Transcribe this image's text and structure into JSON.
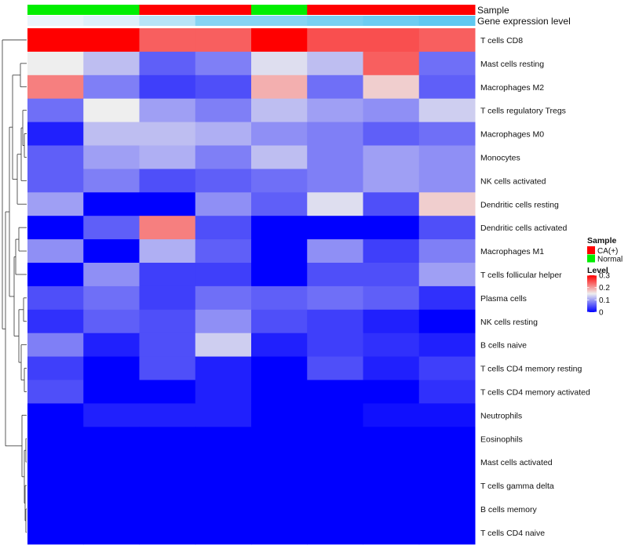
{
  "chart_data": {
    "type": "heatmap",
    "annotation_rows": [
      {
        "name": "Sample",
        "label": "Sample",
        "values": [
          "Normal",
          "Normal",
          "CA(+)",
          "CA(+)",
          "Normal",
          "CA(+)",
          "CA(+)",
          "CA(+)"
        ]
      },
      {
        "name": "Gene expression level",
        "label": "Gene expression level",
        "values": [
          0.1,
          0.11,
          0.14,
          0.18,
          0.18,
          0.19,
          0.2,
          0.21
        ]
      }
    ],
    "rows": [
      "T cells CD8",
      "Mast cells resting",
      "Macrophages M2",
      "T cells regulatory  Tregs",
      "Macrophages M0",
      "Monocytes",
      "NK cells activated",
      "Dendritic cells resting",
      "Dendritic cells activated",
      "Macrophages M1",
      "T cells follicular helper",
      "Plasma cells",
      "NK cells resting",
      "B cells naive",
      "T cells CD4 memory resting",
      "T cells CD4 memory activated",
      "Neutrophils",
      "Eosinophils",
      "Mast cells activated",
      "T cells gamma delta",
      "B cells memory",
      "T cells CD4 naive"
    ],
    "values": [
      [
        0.3,
        0.31,
        0.24,
        0.24,
        0.3,
        0.25,
        0.25,
        0.24
      ],
      [
        0.15,
        0.12,
        0.06,
        0.08,
        0.14,
        0.12,
        0.24,
        0.07
      ],
      [
        0.22,
        0.08,
        0.04,
        0.05,
        0.19,
        0.07,
        0.17,
        0.06
      ],
      [
        0.07,
        0.15,
        0.1,
        0.08,
        0.12,
        0.1,
        0.09,
        0.13
      ],
      [
        0.02,
        0.12,
        0.12,
        0.11,
        0.09,
        0.08,
        0.06,
        0.07
      ],
      [
        0.06,
        0.1,
        0.11,
        0.08,
        0.12,
        0.08,
        0.1,
        0.09
      ],
      [
        0.06,
        0.08,
        0.05,
        0.06,
        0.07,
        0.08,
        0.1,
        0.09
      ],
      [
        0.1,
        0.0,
        0.0,
        0.09,
        0.06,
        0.14,
        0.05,
        0.17
      ],
      [
        0.0,
        0.06,
        0.22,
        0.05,
        0.0,
        0.0,
        0.0,
        0.05
      ],
      [
        0.09,
        0.0,
        0.11,
        0.06,
        0.0,
        0.09,
        0.04,
        0.08
      ],
      [
        0.0,
        0.09,
        0.04,
        0.04,
        0.0,
        0.05,
        0.05,
        0.1
      ],
      [
        0.05,
        0.07,
        0.04,
        0.07,
        0.06,
        0.07,
        0.06,
        0.03
      ],
      [
        0.03,
        0.06,
        0.05,
        0.09,
        0.05,
        0.04,
        0.02,
        0.0
      ],
      [
        0.08,
        0.02,
        0.05,
        0.13,
        0.02,
        0.04,
        0.03,
        0.02
      ],
      [
        0.04,
        0.0,
        0.05,
        0.02,
        0.0,
        0.05,
        0.02,
        0.04
      ],
      [
        0.05,
        0.0,
        0.0,
        0.02,
        0.0,
        0.0,
        0.0,
        0.03
      ],
      [
        0.0,
        0.02,
        0.02,
        0.02,
        0.0,
        0.0,
        0.01,
        0.01
      ],
      [
        0.0,
        0.0,
        0.0,
        0.0,
        0.0,
        0.0,
        0.0,
        0.0
      ],
      [
        0.0,
        0.0,
        0.0,
        0.0,
        0.0,
        0.0,
        0.0,
        0.0
      ],
      [
        0.0,
        0.0,
        0.0,
        0.0,
        0.0,
        0.0,
        0.0,
        0.0
      ],
      [
        0.0,
        0.0,
        0.0,
        0.0,
        0.0,
        0.0,
        0.0,
        0.0
      ],
      [
        0.0,
        0.0,
        0.0,
        0.0,
        0.0,
        0.0,
        0.0,
        0.0
      ]
    ],
    "color_scale": {
      "min": 0,
      "mid": 0.15,
      "max": 0.3,
      "low_color": "#0000FF",
      "mid_color": "#EEEEEE",
      "high_color": "#FF0000"
    },
    "expression_colors": {
      "low": "#EAF4FB",
      "high": "#5FC8F0"
    },
    "legend": {
      "placement": "right",
      "sample": {
        "title": "Sample",
        "items": [
          {
            "label": "CA(+)",
            "color": "#FF0000"
          },
          {
            "label": "Normal",
            "color": "#00EE00"
          }
        ]
      },
      "level": {
        "title": "Level",
        "ticks": [
          {
            "label": "0.3",
            "value": 0.3
          },
          {
            "label": "0.2",
            "value": 0.2
          },
          {
            "label": "0.1",
            "value": 0.1
          },
          {
            "label": "0",
            "value": 0
          }
        ]
      }
    },
    "dendrogram": "rows, left side, hierarchical clustering"
  }
}
